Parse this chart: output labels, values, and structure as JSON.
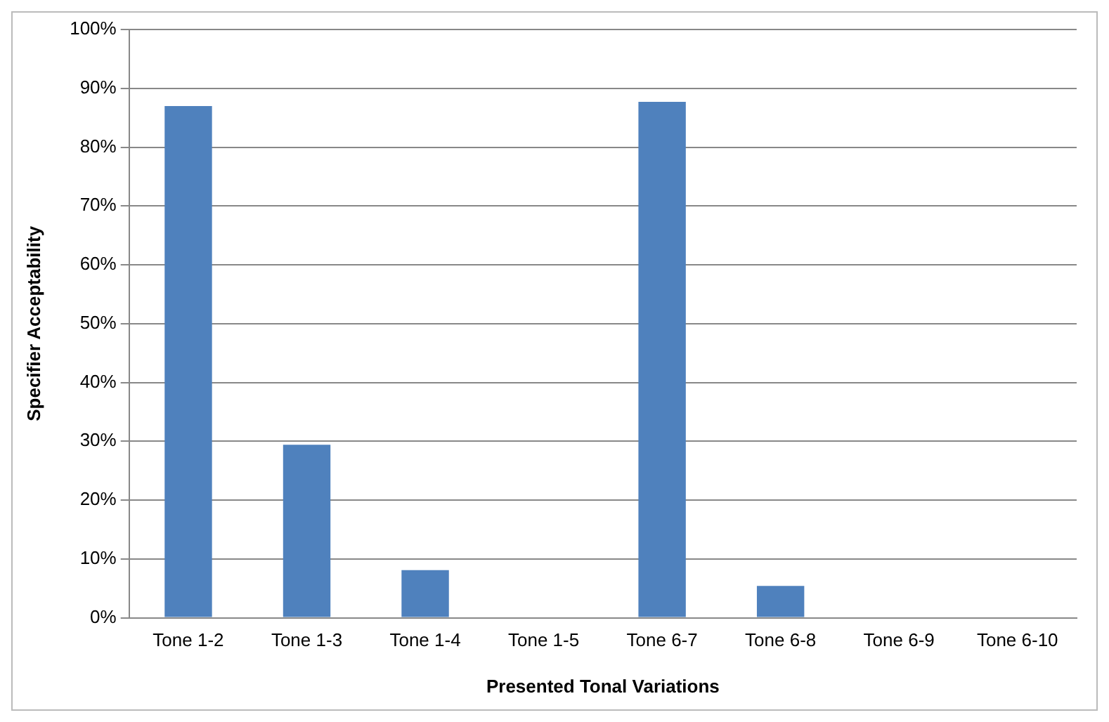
{
  "chart_data": {
    "type": "bar",
    "xlabel": "Presented Tonal Variations",
    "ylabel": "Specifier Acceptability",
    "categories": [
      "Tone 1-2",
      "Tone 1-3",
      "Tone 1-4",
      "Tone 1-5",
      "Tone 6-7",
      "Tone 6-8",
      "Tone 6-9",
      "Tone 6-10"
    ],
    "series": [
      {
        "color": "#4f81bd",
        "values": [
          87,
          29.4,
          8.1,
          0,
          87.7,
          5.4,
          0,
          0
        ]
      }
    ],
    "ylim": [
      0,
      100
    ],
    "yticks": [
      {
        "value": 0,
        "label": "0%"
      },
      {
        "value": 10,
        "label": "10%"
      },
      {
        "value": 20,
        "label": "20%"
      },
      {
        "value": 30,
        "label": "30%"
      },
      {
        "value": 40,
        "label": "40%"
      },
      {
        "value": 50,
        "label": "50%"
      },
      {
        "value": 60,
        "label": "60%"
      },
      {
        "value": 70,
        "label": "70%"
      },
      {
        "value": 80,
        "label": "80%"
      },
      {
        "value": 90,
        "label": "90%"
      },
      {
        "value": 100,
        "label": "100%"
      }
    ],
    "grid": "y",
    "legend": false
  }
}
